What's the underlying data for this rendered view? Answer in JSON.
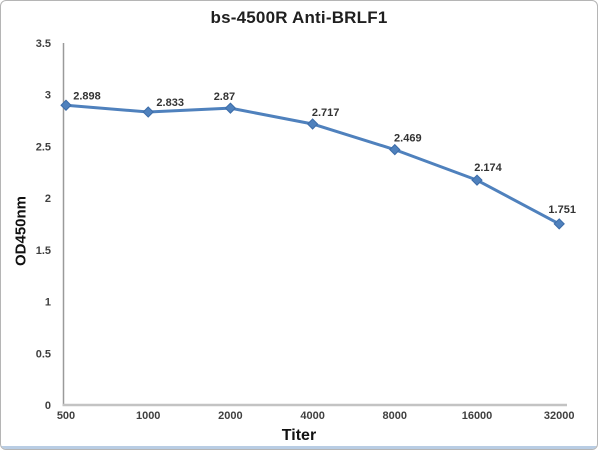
{
  "chart_data": {
    "type": "line",
    "title": "bs-4500R Anti-BRLF1",
    "xlabel": "Titer",
    "ylabel": "OD450nm",
    "categories": [
      "500",
      "1000",
      "2000",
      "4000",
      "8000",
      "16000",
      "32000"
    ],
    "series": [
      {
        "name": "OD450nm",
        "values": [
          2.898,
          2.833,
          2.87,
          2.717,
          2.469,
          2.174,
          1.751
        ],
        "point_labels": [
          "2.898",
          "2.833",
          "2.87",
          "2.717",
          "2.469",
          "2.174",
          "1.751"
        ],
        "marker": "diamond"
      }
    ],
    "ylim": [
      0,
      3.5
    ],
    "yticks": [
      "0",
      "0.5",
      "1",
      "1.5",
      "2",
      "2.5",
      "3",
      "3.5"
    ],
    "grid": false,
    "legend": "none"
  },
  "colors": {
    "line": "#4f81bd",
    "marker_edge": "#3c6ca8",
    "y_axis": "#9a9a9a",
    "x_axis": "#c3c3c3",
    "tick_label": "#404040",
    "data_label": "#333333",
    "title_text": "#1f1f1f",
    "frame_border": "#b5b5b5",
    "bottom_strip": "#b9cde4"
  }
}
